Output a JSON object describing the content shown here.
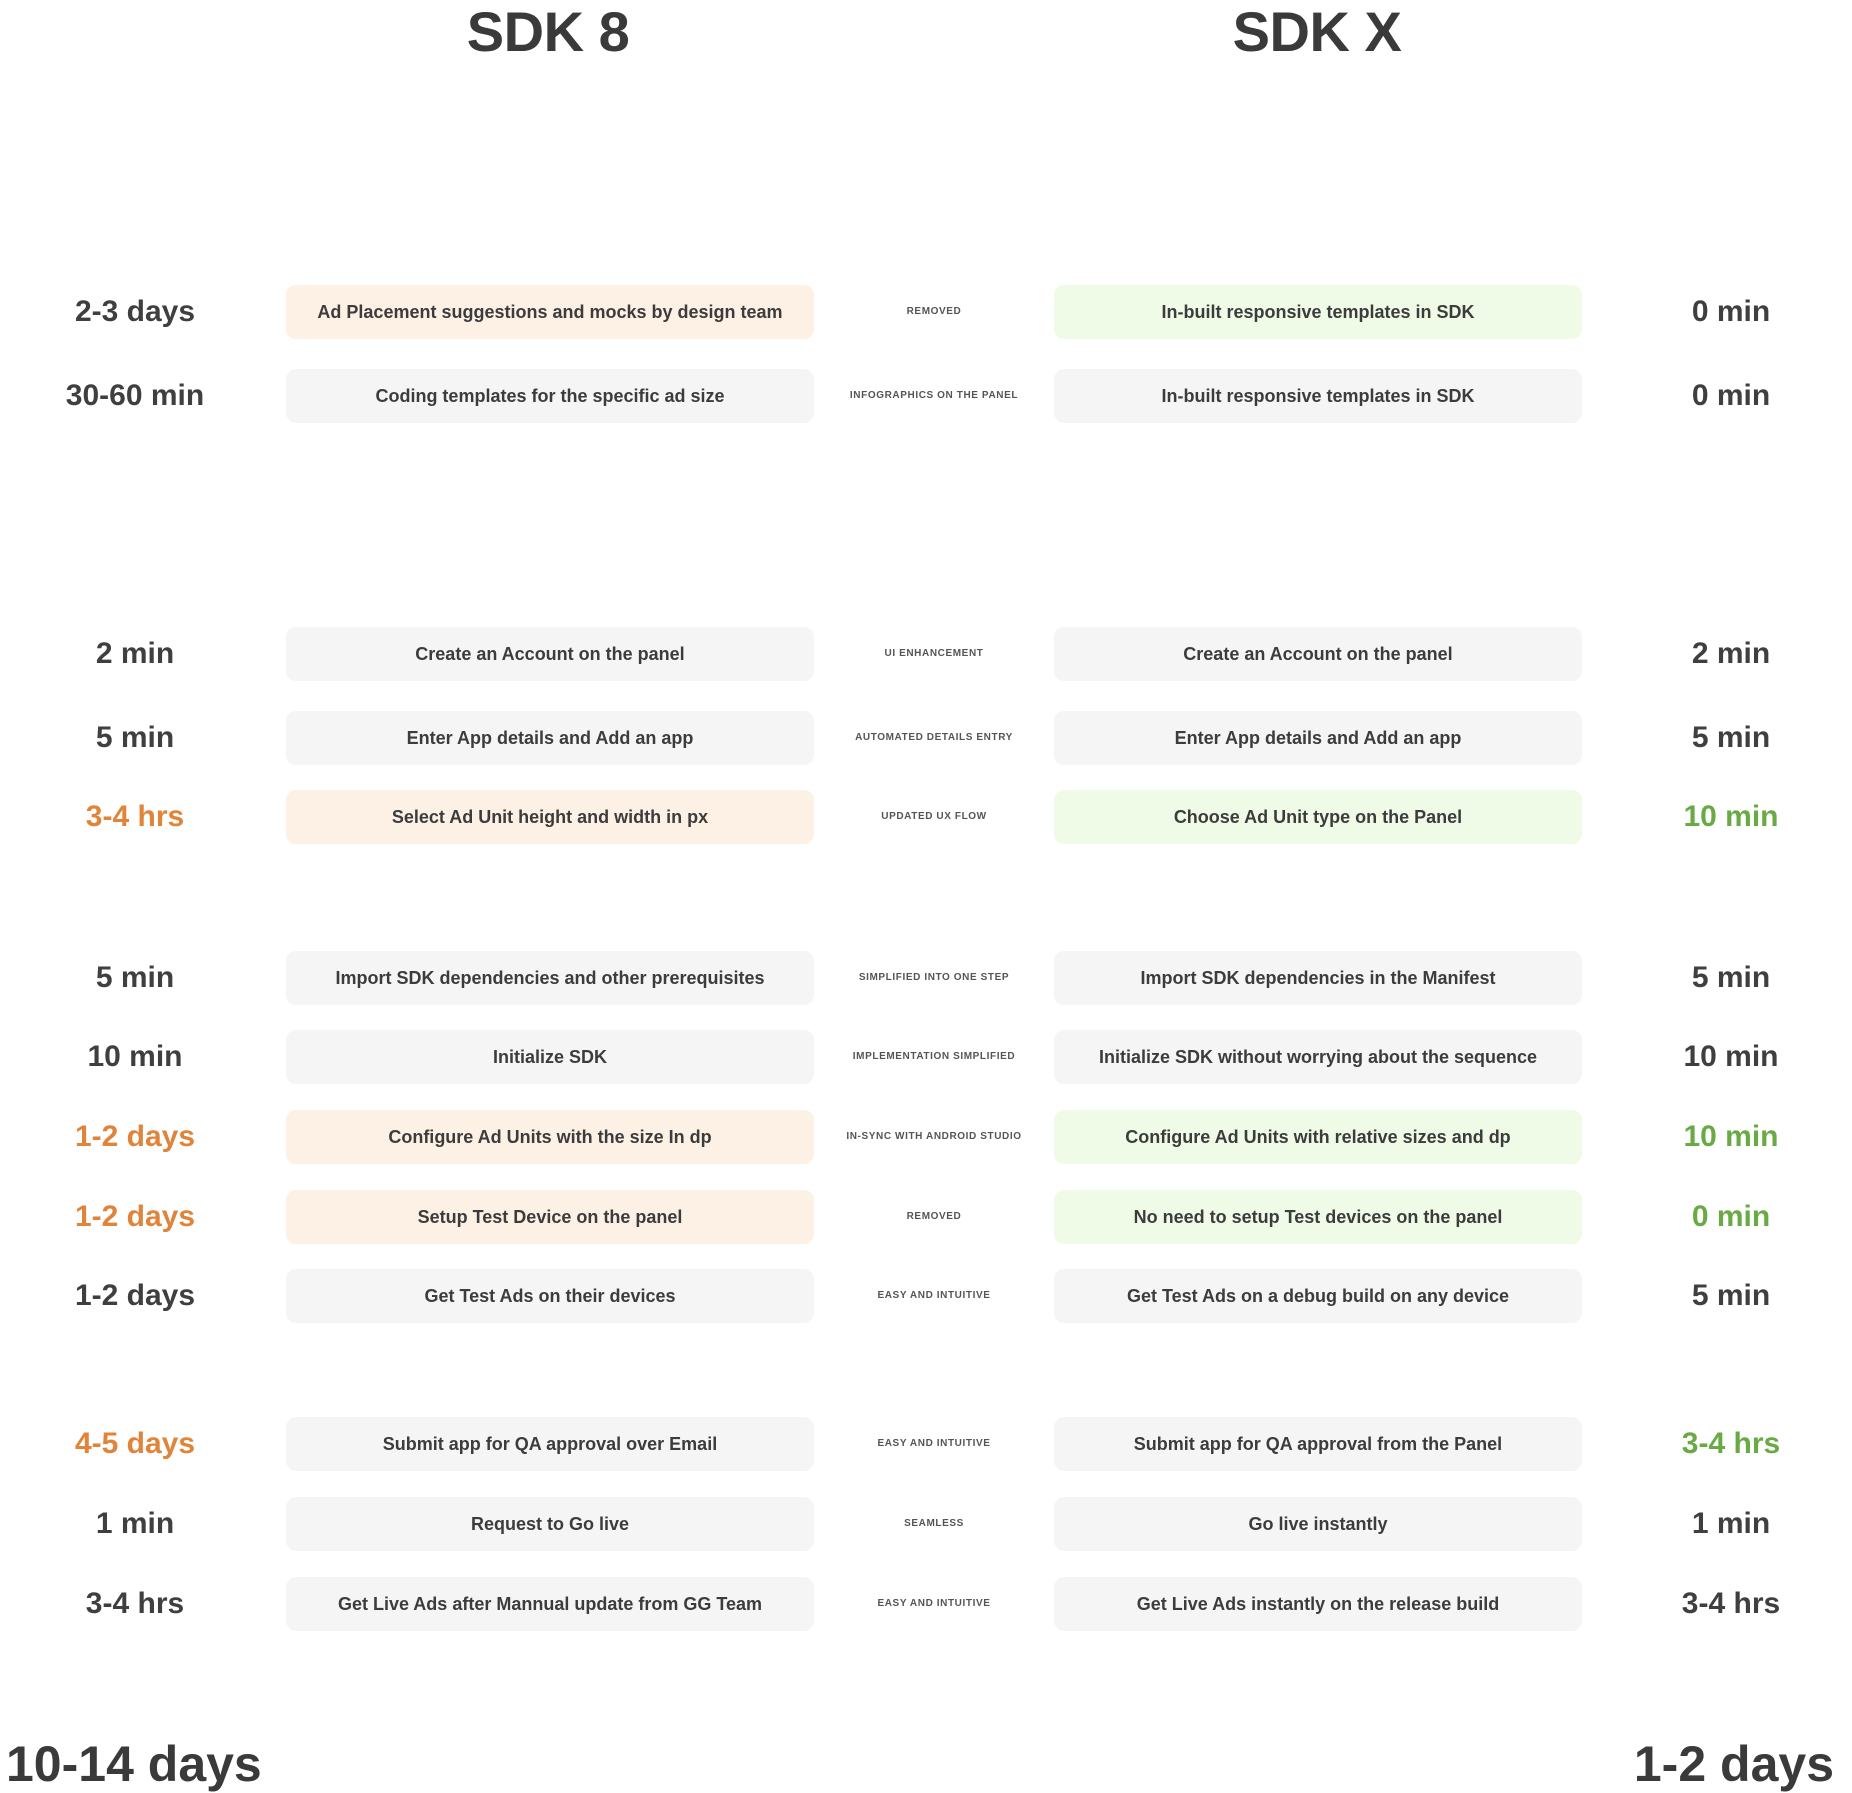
{
  "headings": {
    "left": "SDK 8",
    "right": "SDK X"
  },
  "rows": [
    {
      "left_time": "2-3 days",
      "left_step": "Ad Placement suggestions and mocks by design team",
      "change": "Removed",
      "right_step": "In-built responsive templates in SDK",
      "right_time": "0 min",
      "left_highlight": "peach",
      "right_highlight": "mint",
      "left_time_color": "default",
      "right_time_color": "default"
    },
    {
      "left_time": "30-60 min",
      "left_step": "Coding templates for the specific ad size",
      "change": "Infographics on the panel",
      "right_step": "In-built responsive templates in SDK",
      "right_time": "0 min",
      "left_highlight": "none",
      "right_highlight": "none",
      "left_time_color": "default",
      "right_time_color": "default"
    },
    {
      "left_time": "2 min",
      "left_step": "Create an Account on the panel",
      "change": "UI Enhancement",
      "right_step": "Create an Account on the panel",
      "right_time": "2 min",
      "left_highlight": "none",
      "right_highlight": "none",
      "left_time_color": "default",
      "right_time_color": "default"
    },
    {
      "left_time": "5 min",
      "left_step": "Enter App details and Add an app",
      "change": "Automated details entry",
      "right_step": "Enter App details and Add an app",
      "right_time": "5 min",
      "left_highlight": "none",
      "right_highlight": "none",
      "left_time_color": "default",
      "right_time_color": "default"
    },
    {
      "left_time": "3-4 hrs",
      "left_step": "Select Ad Unit height and width in px",
      "change": "Updated UX Flow",
      "right_step": "Choose Ad Unit type on the Panel",
      "right_time": "10 min",
      "left_highlight": "peach",
      "right_highlight": "mint",
      "left_time_color": "orange",
      "right_time_color": "green"
    },
    {
      "left_time": "5 min",
      "left_step": "Import SDK dependencies and other prerequisites",
      "change": "Simplified into one step",
      "right_step": "Import SDK dependencies in the Manifest",
      "right_time": "5 min",
      "left_highlight": "none",
      "right_highlight": "none",
      "left_time_color": "default",
      "right_time_color": "default"
    },
    {
      "left_time": "10 min",
      "left_step": "Initialize SDK",
      "change": "Implementation simplified",
      "right_step": "Initialize SDK without worrying about the sequence",
      "right_time": "10 min",
      "left_highlight": "none",
      "right_highlight": "none",
      "left_time_color": "default",
      "right_time_color": "default"
    },
    {
      "left_time": "1-2 days",
      "left_step": "Configure Ad Units with the size In dp",
      "change": "In-sync with Android Studio",
      "right_step": "Configure Ad Units with relative sizes and dp",
      "right_time": "10 min",
      "left_highlight": "peach",
      "right_highlight": "mint",
      "left_time_color": "orange",
      "right_time_color": "green"
    },
    {
      "left_time": "1-2 days",
      "left_step": "Setup Test Device on the panel",
      "change": "Removed",
      "right_step": "No need to setup Test devices on the panel",
      "right_time": "0 min",
      "left_highlight": "peach",
      "right_highlight": "mint",
      "left_time_color": "orange",
      "right_time_color": "green"
    },
    {
      "left_time": "1-2 days",
      "left_step": "Get Test Ads on their devices",
      "change": "Easy and Intuitive",
      "right_step": "Get Test Ads on a debug build on any device",
      "right_time": "5 min",
      "left_highlight": "none",
      "right_highlight": "none",
      "left_time_color": "default",
      "right_time_color": "default"
    },
    {
      "left_time": "4-5 days",
      "left_step": "Submit app for QA approval over Email",
      "change": "Easy and Intuitive",
      "right_step": "Submit app for QA approval from the Panel",
      "right_time": "3-4 hrs",
      "left_highlight": "none",
      "right_highlight": "none",
      "left_time_color": "orange",
      "right_time_color": "green"
    },
    {
      "left_time": "1 min",
      "left_step": "Request to Go live",
      "change": "Seamless",
      "right_step": "Go live instantly",
      "right_time": "1 min",
      "left_highlight": "none",
      "right_highlight": "none",
      "left_time_color": "default",
      "right_time_color": "default"
    },
    {
      "left_time": "3-4 hrs",
      "left_step": "Get Live Ads after Mannual update from GG Team",
      "change": "Easy and Intuitive",
      "right_step": "Get Live Ads instantly on the release build",
      "right_time": "3-4 hrs",
      "left_highlight": "none",
      "right_highlight": "none",
      "left_time_color": "default",
      "right_time_color": "default"
    }
  ],
  "totals": {
    "left": "10-14 days",
    "right": "1-2 days"
  },
  "colors": {
    "peach_box": "#fdf0e4",
    "mint_box": "#effbe6",
    "neutral_box": "#f5f5f5",
    "orange_text": "#e0843a",
    "green_text": "#6aaa45",
    "dark_text": "#3c3c3c"
  }
}
